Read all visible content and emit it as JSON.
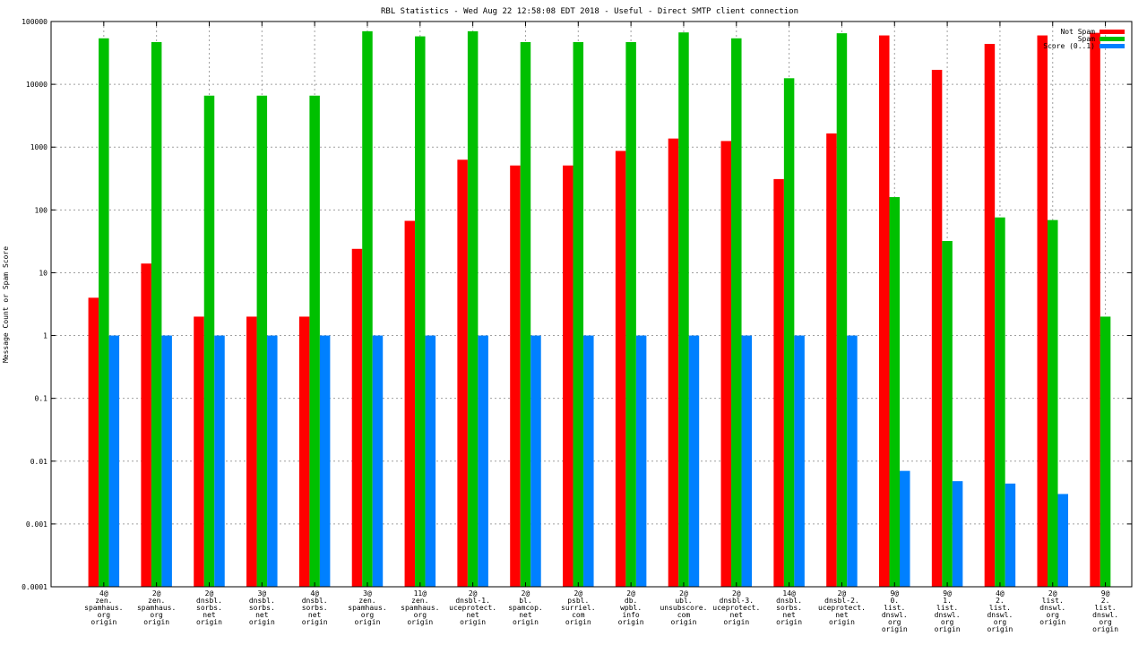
{
  "chart_data": {
    "type": "bar",
    "title": "RBL Statistics - Wed Aug 22 12:58:08 EDT 2018 - Useful - Direct SMTP client connection",
    "xlabel": "",
    "ylabel": "Message Count or Spam Score",
    "yscale": "log",
    "ylim": [
      0.0001,
      100000
    ],
    "yticks": [
      "0.0001",
      "0.001",
      "0.01",
      "0.1",
      "1",
      "10",
      "100",
      "1000",
      "10000",
      "100000"
    ],
    "grid": true,
    "legend_position": "top-right",
    "categories": [
      [
        "4@",
        "zen.",
        "spamhaus.",
        "org",
        "origin"
      ],
      [
        "2@",
        "zen.",
        "spamhaus.",
        "org",
        "origin"
      ],
      [
        "2@",
        "dnsbl.",
        "sorbs.",
        "net",
        "origin"
      ],
      [
        "3@",
        "dnsbl.",
        "sorbs.",
        "net",
        "origin"
      ],
      [
        "4@",
        "dnsbl.",
        "sorbs.",
        "net",
        "origin"
      ],
      [
        "3@",
        "zen.",
        "spamhaus.",
        "org",
        "origin"
      ],
      [
        "11@",
        "zen.",
        "spamhaus.",
        "org",
        "origin"
      ],
      [
        "2@",
        "dnsbl-1.",
        "uceprotect.",
        "net",
        "origin"
      ],
      [
        "2@",
        "bl.",
        "spamcop.",
        "net",
        "origin"
      ],
      [
        "2@",
        "psbl.",
        "surriel.",
        "com",
        "origin"
      ],
      [
        "2@",
        "db.",
        "wpbl.",
        "info",
        "origin"
      ],
      [
        "2@",
        "ubl.",
        "unsubscore.",
        "com",
        "origin"
      ],
      [
        "2@",
        "dnsbl-3.",
        "uceprotect.",
        "net",
        "origin"
      ],
      [
        "14@",
        "dnsbl.",
        "sorbs.",
        "net",
        "origin"
      ],
      [
        "2@",
        "dnsbl-2.",
        "uceprotect.",
        "net",
        "origin"
      ],
      [
        "9@",
        "0.",
        "list.",
        "dnswl.",
        "org",
        "origin"
      ],
      [
        "9@",
        "1.",
        "list.",
        "dnswl.",
        "org",
        "origin"
      ],
      [
        "4@",
        "2.",
        "list.",
        "dnswl.",
        "org",
        "origin"
      ],
      [
        "2@",
        "list.",
        "dnswl.",
        "org",
        "origin"
      ],
      [
        "9@",
        "2.",
        "list.",
        "dnswl.",
        "org",
        "origin"
      ]
    ],
    "series": [
      {
        "name": "Not Spam",
        "color": "#ff0000",
        "values": [
          4,
          14,
          2,
          2,
          2,
          24,
          67,
          630,
          510,
          510,
          870,
          1370,
          1250,
          310,
          1650,
          60000,
          17000,
          44000,
          60000,
          66000
        ]
      },
      {
        "name": "Spam",
        "color": "#00c000",
        "values": [
          54000,
          47000,
          6600,
          6600,
          6600,
          70000,
          58000,
          70000,
          47000,
          47000,
          47000,
          67000,
          54000,
          12500,
          65000,
          160,
          32,
          76,
          69,
          2
        ]
      },
      {
        "name": "Score (0..1)",
        "color": "#0080ff",
        "values": [
          1,
          1,
          1,
          1,
          1,
          1,
          1,
          1,
          1,
          1,
          1,
          1,
          1,
          1,
          1,
          0.007,
          0.0048,
          0.0044,
          0.003,
          null
        ]
      }
    ]
  }
}
